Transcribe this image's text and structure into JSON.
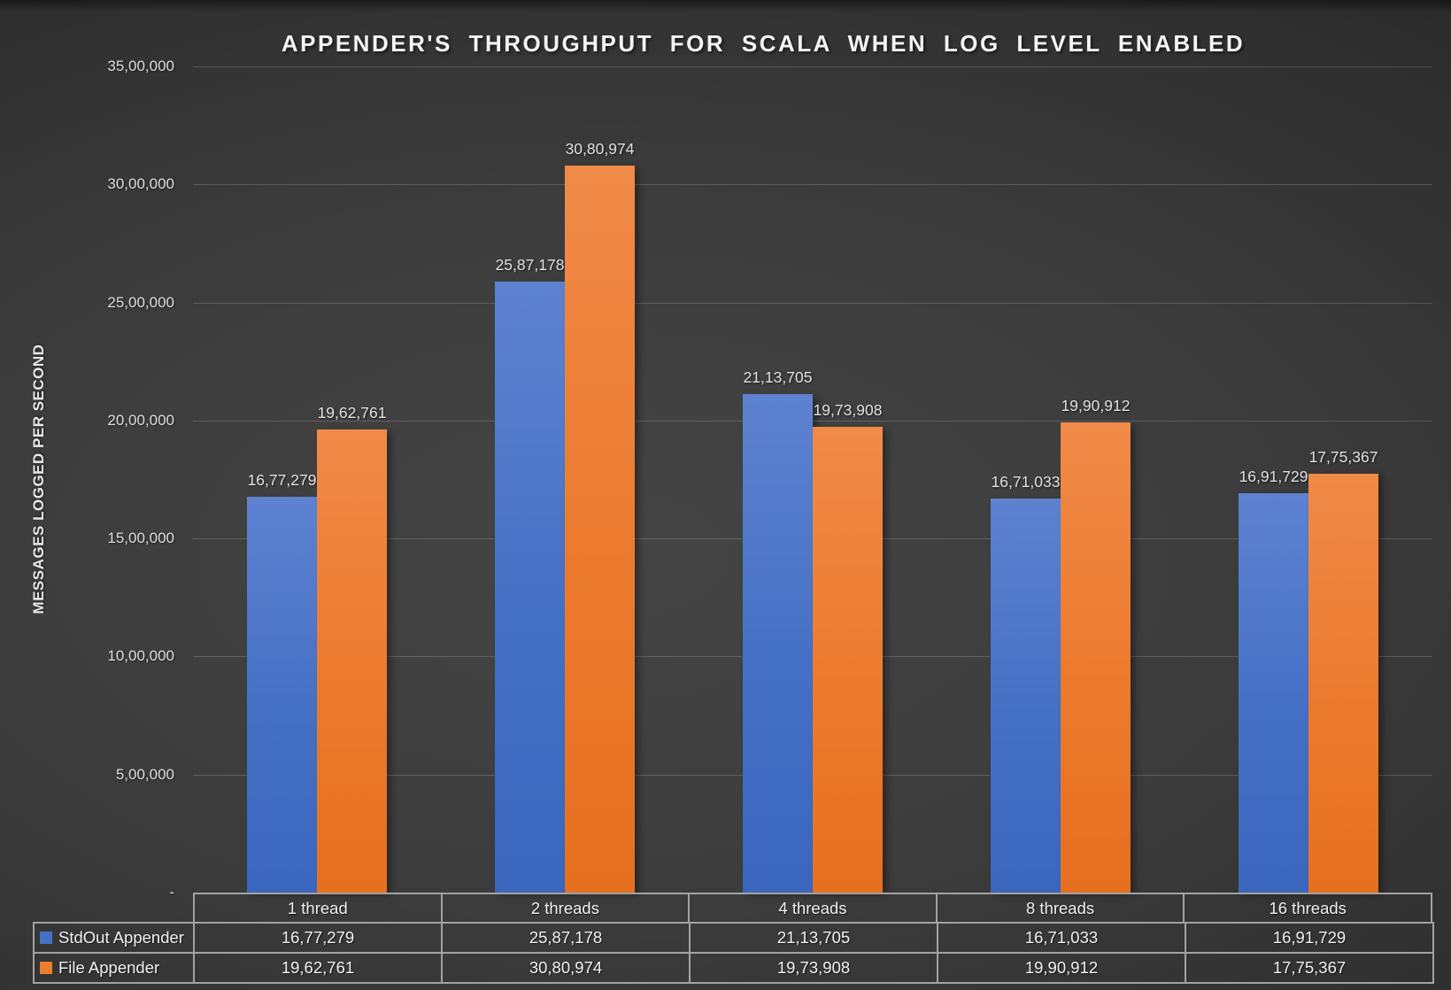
{
  "chart_data": {
    "type": "bar",
    "title": "APPENDER'S THROUGHPUT FOR SCALA WHEN LOG LEVEL ENABLED",
    "xlabel": "",
    "ylabel": "MESSAGES LOGGED PER SECOND",
    "categories": [
      "1 thread",
      "2 threads",
      "4 threads",
      "8 threads",
      "16 threads"
    ],
    "series": [
      {
        "name": "StdOut Appender",
        "color": "#4472C4",
        "values": [
          1677279,
          2587178,
          2113705,
          1671033,
          1691729
        ],
        "value_labels": [
          "16,77,279",
          "25,87,178",
          "21,13,705",
          "16,71,033",
          "16,91,729"
        ]
      },
      {
        "name": "File Appender",
        "color": "#ED7D31",
        "values": [
          1962761,
          3080974,
          1973908,
          1990912,
          1775367
        ],
        "value_labels": [
          "19,62,761",
          "30,80,974",
          "19,73,908",
          "19,90,912",
          "17,75,367"
        ]
      }
    ],
    "ylim": [
      0,
      3500000
    ],
    "ytick_values": [
      0,
      500000,
      1000000,
      1500000,
      2000000,
      2500000,
      3000000,
      3500000
    ],
    "ytick_labels": [
      "-",
      "5,00,000",
      "10,00,000",
      "15,00,000",
      "20,00,000",
      "25,00,000",
      "30,00,000",
      "35,00,000"
    ],
    "grid": true,
    "legend_position": "data-table-left",
    "data_labels": true
  }
}
